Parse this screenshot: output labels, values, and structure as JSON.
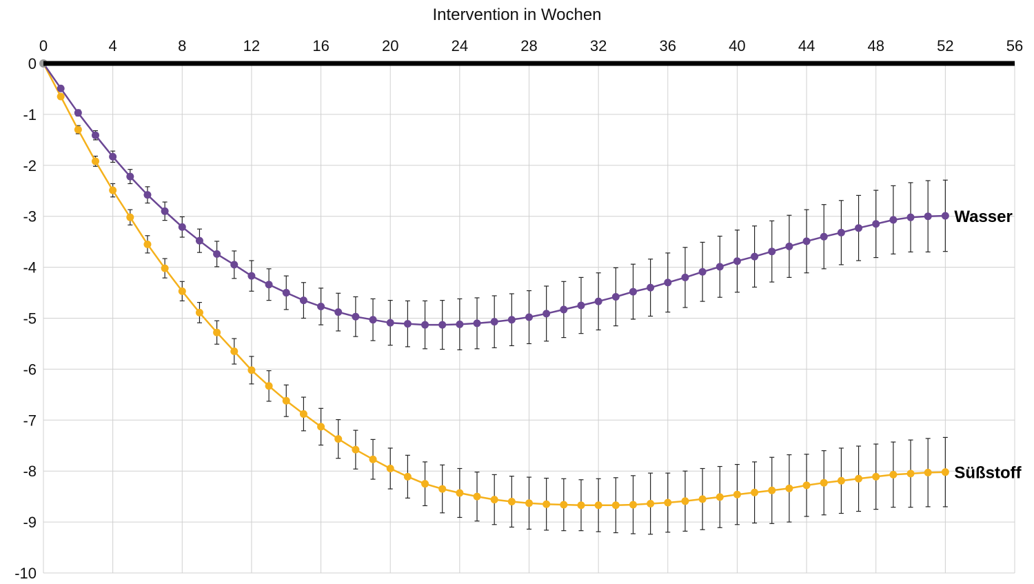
{
  "chart_data": {
    "type": "line",
    "title": "",
    "xlabel": "Intervention in Wochen",
    "ylabel": "",
    "xlim": [
      0,
      56
    ],
    "ylim": [
      -10,
      0
    ],
    "x_ticks": [
      "0",
      "4",
      "8",
      "12",
      "16",
      "20",
      "24",
      "28",
      "32",
      "36",
      "40",
      "44",
      "48",
      "52",
      "56"
    ],
    "y_ticks": [
      "0",
      "-1",
      "-2",
      "-3",
      "-4",
      "-5",
      "-6",
      "-7",
      "-8",
      "-9",
      "-10"
    ],
    "x_axis_position": "top",
    "grid": true,
    "legend": "direct labels at line ends",
    "x": [
      0,
      1,
      2,
      3,
      4,
      5,
      6,
      7,
      8,
      9,
      10,
      11,
      12,
      13,
      14,
      15,
      16,
      17,
      18,
      19,
      20,
      21,
      22,
      23,
      24,
      25,
      26,
      27,
      28,
      29,
      30,
      31,
      32,
      33,
      34,
      35,
      36,
      37,
      38,
      39,
      40,
      41,
      42,
      43,
      44,
      45,
      46,
      47,
      48,
      49,
      50,
      51,
      52
    ],
    "series": [
      {
        "name": "Wasser",
        "color": "#6b4794",
        "values": [
          0,
          -0.49,
          -0.97,
          -1.41,
          -1.83,
          -2.22,
          -2.58,
          -2.9,
          -3.21,
          -3.48,
          -3.74,
          -3.95,
          -4.17,
          -4.34,
          -4.5,
          -4.65,
          -4.77,
          -4.88,
          -4.97,
          -5.03,
          -5.09,
          -5.11,
          -5.13,
          -5.13,
          -5.12,
          -5.1,
          -5.07,
          -5.03,
          -4.98,
          -4.91,
          -4.83,
          -4.75,
          -4.67,
          -4.58,
          -4.48,
          -4.4,
          -4.3,
          -4.2,
          -4.09,
          -3.99,
          -3.88,
          -3.79,
          -3.69,
          -3.59,
          -3.49,
          -3.4,
          -3.32,
          -3.23,
          -3.15,
          -3.07,
          -3.02,
          -3.0,
          -2.99
        ],
        "error": [
          0,
          0.04,
          0.06,
          0.09,
          0.11,
          0.14,
          0.16,
          0.18,
          0.2,
          0.23,
          0.25,
          0.27,
          0.3,
          0.31,
          0.33,
          0.35,
          0.36,
          0.37,
          0.39,
          0.41,
          0.44,
          0.45,
          0.47,
          0.48,
          0.5,
          0.5,
          0.51,
          0.51,
          0.52,
          0.54,
          0.55,
          0.55,
          0.56,
          0.57,
          0.54,
          0.56,
          0.58,
          0.59,
          0.58,
          0.6,
          0.61,
          0.6,
          0.6,
          0.61,
          0.62,
          0.63,
          0.63,
          0.64,
          0.66,
          0.67,
          0.68,
          0.7,
          0.7
        ]
      },
      {
        "name": "Süßstoff",
        "color": "#f5b11c",
        "values": [
          0,
          -0.65,
          -1.3,
          -1.92,
          -2.49,
          -3.02,
          -3.55,
          -4.02,
          -4.47,
          -4.89,
          -5.28,
          -5.65,
          -6.02,
          -6.33,
          -6.62,
          -6.88,
          -7.13,
          -7.37,
          -7.58,
          -7.77,
          -7.95,
          -8.11,
          -8.25,
          -8.35,
          -8.43,
          -8.5,
          -8.56,
          -8.6,
          -8.63,
          -8.65,
          -8.66,
          -8.67,
          -8.67,
          -8.67,
          -8.66,
          -8.64,
          -8.62,
          -8.59,
          -8.55,
          -8.51,
          -8.46,
          -8.42,
          -8.38,
          -8.34,
          -8.28,
          -8.23,
          -8.19,
          -8.15,
          -8.11,
          -8.07,
          -8.05,
          -8.03,
          -8.02
        ],
        "error": [
          0,
          0.05,
          0.08,
          0.1,
          0.13,
          0.15,
          0.17,
          0.19,
          0.19,
          0.2,
          0.23,
          0.25,
          0.27,
          0.3,
          0.31,
          0.33,
          0.36,
          0.38,
          0.38,
          0.39,
          0.4,
          0.42,
          0.43,
          0.47,
          0.48,
          0.48,
          0.49,
          0.5,
          0.51,
          0.51,
          0.51,
          0.5,
          0.52,
          0.54,
          0.57,
          0.6,
          0.58,
          0.59,
          0.6,
          0.6,
          0.59,
          0.6,
          0.65,
          0.66,
          0.61,
          0.63,
          0.64,
          0.64,
          0.64,
          0.64,
          0.66,
          0.67,
          0.68
        ]
      }
    ]
  }
}
